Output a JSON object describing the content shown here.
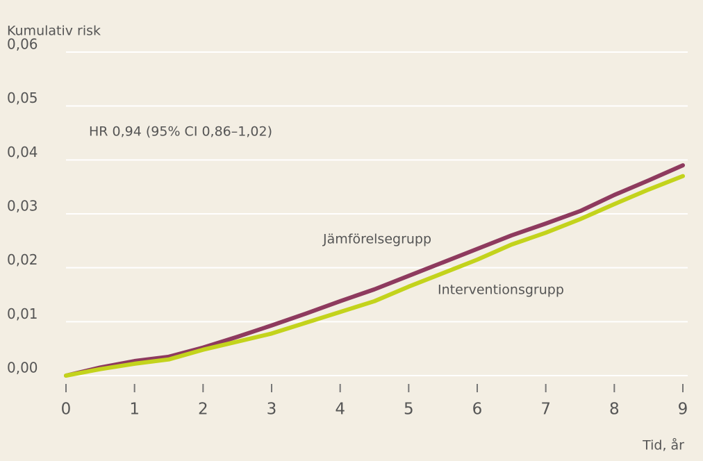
{
  "chart_data": {
    "type": "line",
    "ylabel": "Kumulativ risk",
    "xlabel": "Tid, år",
    "annotations": [
      "HR 0,94 (95% CI 0,86–1,02)",
      "Jämförelsegrupp",
      "Interventionsgrupp"
    ],
    "x": [
      0,
      0.5,
      1,
      1.5,
      2,
      2.5,
      3,
      3.5,
      4,
      4.5,
      5,
      5.5,
      6,
      6.5,
      7,
      7.5,
      8,
      8.5,
      9
    ],
    "series": [
      {
        "name": "Jämförelsegrupp",
        "color": "#8e3a5e",
        "values": [
          0,
          0.0015,
          0.0027,
          0.0035,
          0.0052,
          0.0072,
          0.0093,
          0.0115,
          0.0138,
          0.016,
          0.0185,
          0.021,
          0.0235,
          0.026,
          0.0282,
          0.0305,
          0.0335,
          0.0362,
          0.039
        ]
      },
      {
        "name": "Interventionsgrupp",
        "color": "#c3d31c",
        "values": [
          0,
          0.0012,
          0.0022,
          0.003,
          0.0048,
          0.0063,
          0.0078,
          0.0098,
          0.0118,
          0.0138,
          0.0165,
          0.019,
          0.0215,
          0.0243,
          0.0265,
          0.029,
          0.0318,
          0.0345,
          0.037
        ]
      }
    ],
    "xlim": [
      0,
      9
    ],
    "xticks": [
      0,
      1,
      2,
      3,
      4,
      5,
      6,
      7,
      8,
      9
    ],
    "ylim": [
      0,
      0.06
    ],
    "yticks": [
      {
        "value": 0,
        "label": "0,00"
      },
      {
        "value": 0.01,
        "label": "0,01"
      },
      {
        "value": 0.02,
        "label": "0,02"
      },
      {
        "value": 0.03,
        "label": "0,03"
      },
      {
        "value": 0.04,
        "label": "0,04"
      },
      {
        "value": 0.05,
        "label": "0,05"
      },
      {
        "value": 0.06,
        "label": "0,06"
      }
    ],
    "grid": true
  }
}
